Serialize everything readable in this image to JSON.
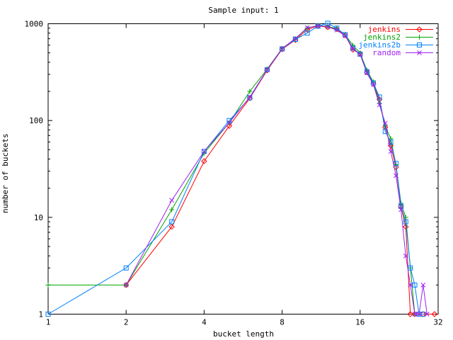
{
  "title": "Sample input: 1",
  "chart_data": {
    "type": "line",
    "title": "Sample input: 1",
    "xlabel": "bucket length",
    "ylabel": "number of buckets",
    "x_scale": "log2",
    "y_scale": "log10",
    "xlim": [
      1,
      32
    ],
    "ylim": [
      1,
      1000
    ],
    "x_ticks": [
      1,
      2,
      4,
      8,
      16,
      32
    ],
    "y_ticks": [
      1,
      10,
      100,
      1000
    ],
    "grid": false,
    "legend_position": "top-right-inside",
    "axis_color": "#000000",
    "background_color": "#ffffff",
    "series": [
      {
        "name": "jenkins",
        "color": "#ff0000",
        "marker": "diamond",
        "points": [
          [
            2,
            2
          ],
          [
            3,
            8
          ],
          [
            4,
            38
          ],
          [
            5,
            88
          ],
          [
            6,
            170
          ],
          [
            7,
            330
          ],
          [
            8,
            545
          ],
          [
            9,
            680
          ],
          [
            10,
            870
          ],
          [
            11,
            950
          ],
          [
            12,
            920
          ],
          [
            13,
            880
          ],
          [
            14,
            760
          ],
          [
            15,
            540
          ],
          [
            16,
            490
          ],
          [
            17,
            315
          ],
          [
            18,
            240
          ],
          [
            19,
            165
          ],
          [
            20,
            85
          ],
          [
            21,
            55
          ],
          [
            22,
            33
          ],
          [
            23,
            13
          ],
          [
            24,
            8
          ],
          [
            25,
            1
          ],
          [
            26,
            1
          ],
          [
            28,
            1
          ],
          [
            31,
            1
          ]
        ]
      },
      {
        "name": "jenkins2",
        "color": "#00a400",
        "marker": "plus",
        "points": [
          [
            1,
            2
          ],
          [
            2,
            2
          ],
          [
            3,
            12
          ],
          [
            4,
            46
          ],
          [
            5,
            95
          ],
          [
            6,
            200
          ],
          [
            7,
            340
          ],
          [
            8,
            555
          ],
          [
            9,
            700
          ],
          [
            10,
            900
          ],
          [
            11,
            960
          ],
          [
            12,
            940
          ],
          [
            13,
            890
          ],
          [
            14,
            770
          ],
          [
            15,
            600
          ],
          [
            16,
            500
          ],
          [
            17,
            330
          ],
          [
            18,
            250
          ],
          [
            19,
            150
          ],
          [
            20,
            88
          ],
          [
            21,
            65
          ],
          [
            22,
            35
          ],
          [
            23,
            14
          ],
          [
            24,
            10
          ],
          [
            25,
            3
          ],
          [
            26,
            1
          ],
          [
            27,
            1
          ]
        ]
      },
      {
        "name": "jenkins2b",
        "color": "#0080ff",
        "marker": "square",
        "points": [
          [
            1,
            1
          ],
          [
            2,
            3
          ],
          [
            3,
            9
          ],
          [
            4,
            48
          ],
          [
            5,
            100
          ],
          [
            6,
            172
          ],
          [
            7,
            335
          ],
          [
            8,
            550
          ],
          [
            9,
            690
          ],
          [
            10,
            800
          ],
          [
            11,
            945
          ],
          [
            12,
            1010
          ],
          [
            13,
            900
          ],
          [
            14,
            772
          ],
          [
            15,
            560
          ],
          [
            16,
            485
          ],
          [
            17,
            320
          ],
          [
            18,
            245
          ],
          [
            19,
            175
          ],
          [
            20,
            77
          ],
          [
            21,
            60
          ],
          [
            22,
            36
          ],
          [
            23,
            13
          ],
          [
            24,
            9
          ],
          [
            25,
            3
          ],
          [
            26,
            2
          ],
          [
            27,
            1
          ],
          [
            28,
            1
          ]
        ]
      },
      {
        "name": "random",
        "color": "#a020f0",
        "marker": "x",
        "points": [
          [
            2,
            2
          ],
          [
            3,
            15
          ],
          [
            4,
            48
          ],
          [
            5,
            95
          ],
          [
            6,
            175
          ],
          [
            7,
            335
          ],
          [
            8,
            550
          ],
          [
            9,
            705
          ],
          [
            10,
            910
          ],
          [
            11,
            950
          ],
          [
            12,
            930
          ],
          [
            13,
            860
          ],
          [
            14,
            750
          ],
          [
            15,
            555
          ],
          [
            16,
            480
          ],
          [
            17,
            310
          ],
          [
            18,
            235
          ],
          [
            19,
            145
          ],
          [
            20,
            94
          ],
          [
            21,
            48
          ],
          [
            22,
            27
          ],
          [
            23,
            12
          ],
          [
            24,
            4
          ],
          [
            25,
            2
          ],
          [
            26,
            1
          ],
          [
            27,
            1
          ],
          [
            28,
            2
          ],
          [
            29,
            1
          ]
        ]
      }
    ]
  }
}
